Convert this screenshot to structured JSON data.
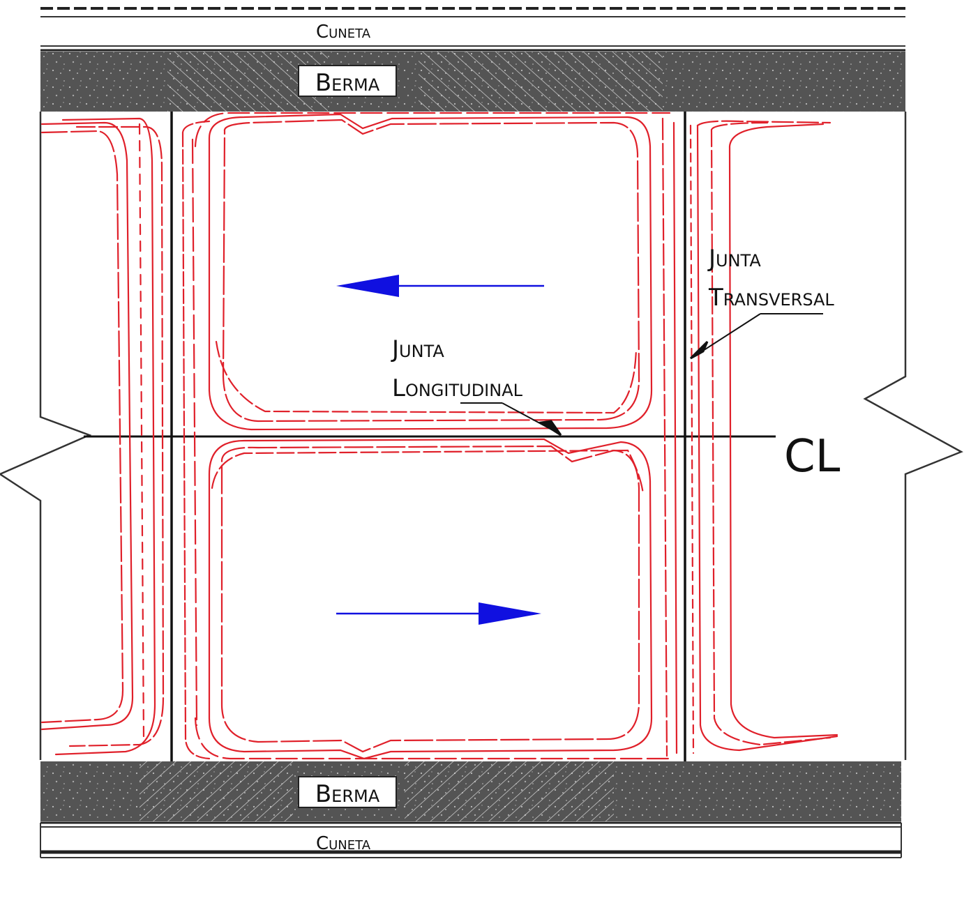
{
  "diagram": {
    "labels": {
      "cuneta_top": "Cuneta",
      "berma_top": "Berma",
      "junta_transversal_1": "Junta",
      "junta_transversal_2": "Transversal",
      "junta_longitudinal_1": "Junta",
      "junta_longitudinal_2": "Longitudinal",
      "centerline": "CL",
      "berma_bottom": "Berma",
      "cuneta_bottom": "Cuneta"
    },
    "colors": {
      "crack": "#e0202a",
      "arrow": "#1010e0",
      "berma": "#505050",
      "line": "#111111"
    },
    "icons": {
      "direction_upper": "arrow-left-icon",
      "direction_lower": "arrow-right-icon",
      "centerline": "centerline-symbol-icon"
    }
  }
}
